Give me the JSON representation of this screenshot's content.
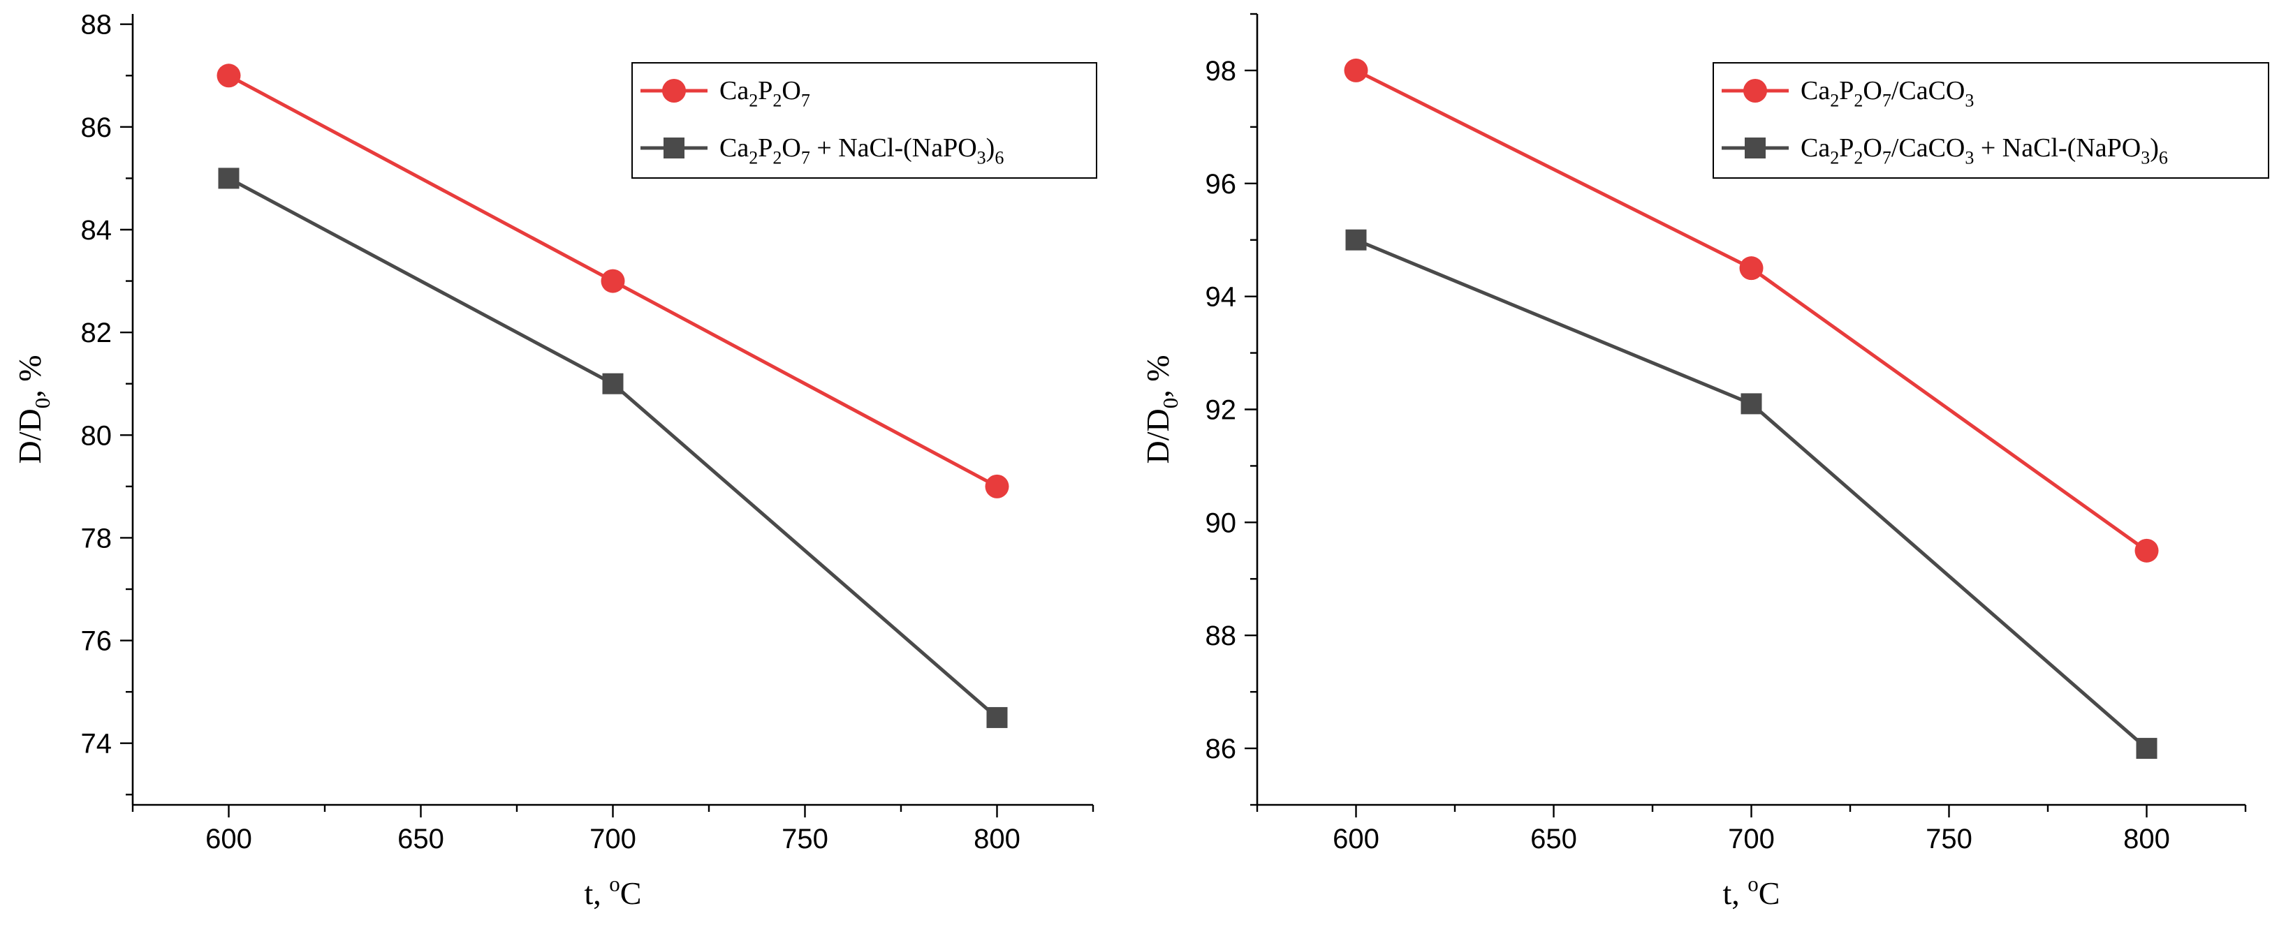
{
  "chart_data": [
    {
      "type": "line",
      "xlabel": "t, °C",
      "ylabel": "D/D0, %",
      "xlim": [
        575,
        825
      ],
      "ylim": [
        72.8,
        88.2
      ],
      "x_ticks": [
        600,
        650,
        700,
        750,
        800
      ],
      "y_ticks": [
        74,
        76,
        78,
        80,
        82,
        84,
        86,
        88
      ],
      "grid": false,
      "legend_position": "top-right",
      "series": [
        {
          "name": "Ca2P2O7",
          "color": "#e83c3c",
          "marker": "circle",
          "x": [
            600,
            700,
            800
          ],
          "y": [
            87,
            83,
            79
          ]
        },
        {
          "name": "Ca2P2O7 + NaCl-(NaPO3)6",
          "color": "#4a4a4a",
          "marker": "square",
          "x": [
            600,
            700,
            800
          ],
          "y": [
            85,
            81,
            74.5
          ]
        }
      ]
    },
    {
      "type": "line",
      "xlabel": "t, °C",
      "ylabel": "D/D0, %",
      "xlim": [
        575,
        825
      ],
      "ylim": [
        85.0,
        99.0
      ],
      "x_ticks": [
        600,
        650,
        700,
        750,
        800
      ],
      "y_ticks": [
        86,
        88,
        90,
        92,
        94,
        96,
        98
      ],
      "grid": false,
      "legend_position": "top-right",
      "series": [
        {
          "name": "Ca2P2O7/CaCO3",
          "color": "#e83c3c",
          "marker": "circle",
          "x": [
            600,
            700,
            800
          ],
          "y": [
            98,
            94.5,
            89.5
          ]
        },
        {
          "name": "Ca2P2O7/CaCO3 + NaCl-(NaPO3)6",
          "color": "#4a4a4a",
          "marker": "square",
          "x": [
            600,
            700,
            800
          ],
          "y": [
            95,
            92.1,
            86
          ]
        }
      ]
    }
  ]
}
